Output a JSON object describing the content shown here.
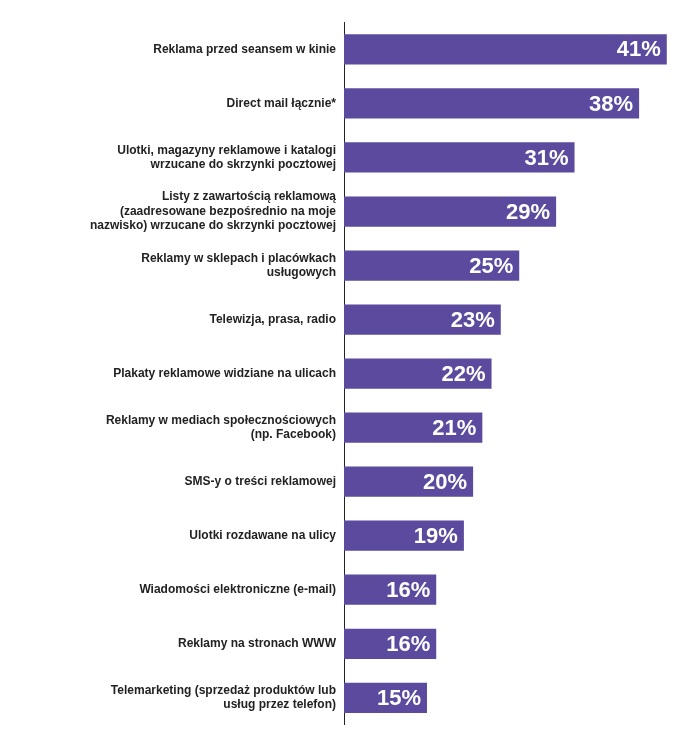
{
  "chart_data": {
    "type": "bar",
    "orientation": "horizontal",
    "categories": [
      "Reklama przed seansem w kinie",
      "Direct mail łącznie*",
      "Ulotki, magazyny reklamowe i katalogi wrzucane do skrzynki pocztowej",
      "Listy z zawartością reklamową (zaadresowane bezpośrednio na moje nazwisko) wrzucane do skrzynki pocztowej",
      "Reklamy w sklepach i placówkach usługowych",
      "Telewizja, prasa, radio",
      "Plakaty reklamowe widziane na ulicach",
      "Reklamy w mediach społecznościowych (np. Facebook)",
      "SMS-y o treści reklamowej",
      "Ulotki rozdawane na ulicy",
      "Wiadomości elektroniczne (e-mail)",
      "Reklamy na stronach WWW",
      "Telemarketing (sprzedaż produktów lub usług przez telefon)"
    ],
    "values": [
      41,
      38,
      31,
      29,
      25,
      23,
      22,
      21,
      20,
      19,
      16,
      16,
      15
    ],
    "value_labels": [
      "41%",
      "38%",
      "31%",
      "29%",
      "25%",
      "23%",
      "22%",
      "21%",
      "20%",
      "19%",
      "16%",
      "16%",
      "15%"
    ],
    "color": "#5b4a9e",
    "xlim": [
      6,
      42
    ],
    "grid": false,
    "data_labels": true,
    "tick_labels": "y"
  }
}
